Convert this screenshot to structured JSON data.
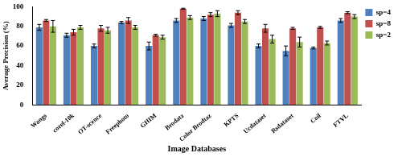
{
  "chart_data": {
    "type": "bar",
    "x_label": "Image Databases",
    "y_label": "Average Precision (%)",
    "categories": [
      "Wangs",
      "corel-10k",
      "OT-scence",
      "Freephoto",
      "GHIM",
      "Brodatz",
      "Color Brodtaz",
      "KPTS",
      "Ucdataset",
      "Rsdataset",
      "Coil",
      "FTVL"
    ],
    "series": [
      {
        "name": "sp=4",
        "color": "#4f81bd",
        "values": [
          79,
          71,
          60,
          84,
          60,
          86,
          88,
          81,
          60,
          55,
          58,
          86
        ],
        "errors": [
          3,
          2,
          2,
          1,
          4,
          2,
          2,
          2,
          2,
          5,
          1,
          2
        ]
      },
      {
        "name": "sp=8",
        "color": "#c0504d",
        "values": [
          86,
          74,
          78,
          86,
          71,
          98,
          92,
          94,
          78,
          78,
          79,
          94
        ],
        "errors": [
          1,
          3,
          3,
          3,
          1,
          0.5,
          2,
          2,
          4,
          1,
          1,
          1
        ]
      },
      {
        "name": "sp=2",
        "color": "#9bbb59",
        "values": [
          80,
          79,
          76,
          79,
          69,
          89,
          93,
          85,
          67,
          64,
          63,
          90
        ],
        "errors": [
          6,
          2,
          3,
          2,
          2,
          2,
          3,
          2,
          4,
          5,
          2,
          2
        ]
      }
    ],
    "ylim": [
      0,
      100
    ],
    "yticks": [
      0,
      20,
      40,
      60,
      80,
      100
    ],
    "grid": false,
    "legend": "right"
  }
}
